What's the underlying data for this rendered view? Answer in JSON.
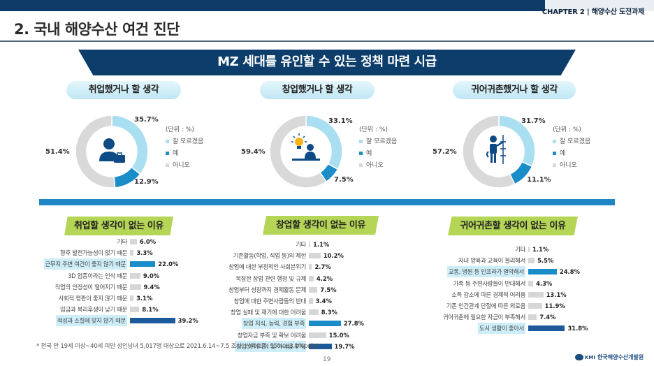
{
  "header": {
    "chapter": "CHAPTER 2  |  해양수산 도전과제",
    "page_title": "2. 국내 해양수산 여건 진단"
  },
  "banner": "MZ 세대를 유인할 수 있는 정책 마련 시급",
  "colors": {
    "unknown": "#a9dff1",
    "yes": "#1a8cc8",
    "no": "#d9d9d9",
    "bar_gray": "#d6d6d6",
    "bar_blue": "#1a8cc8",
    "bar_navy": "#1c5a9b"
  },
  "donuts": [
    {
      "title": "취업했거나 할 생각",
      "unit": "(단위 : %)",
      "icon": "job-seeker-icon",
      "values": {
        "unknown": 35.7,
        "yes": 12.9,
        "no": 51.4
      },
      "labels": {
        "unknown": "35.7%",
        "yes": "12.9%",
        "no": "51.4%"
      },
      "legend": [
        "잘 모르겠음",
        "예",
        "아니오"
      ]
    },
    {
      "title": "창업했거나 할 생각",
      "unit": "(단위 : %)",
      "icon": "startup-idea-icon",
      "values": {
        "unknown": 33.1,
        "yes": 7.5,
        "no": 59.4
      },
      "labels": {
        "unknown": "33.1%",
        "yes": "7.5%",
        "no": "59.4%"
      },
      "legend": [
        "잘 모르겠음",
        "예",
        "아니오"
      ]
    },
    {
      "title": "귀어귀촌했거나 할 생각",
      "unit": "(단위 : %)",
      "icon": "fisherman-icon",
      "values": {
        "unknown": 31.7,
        "yes": 11.1,
        "no": 57.2
      },
      "labels": {
        "unknown": "31.7%",
        "yes": "11.1%",
        "no": "57.2%"
      },
      "legend": [
        "잘 모르겠음",
        "예",
        "아니오"
      ]
    }
  ],
  "reasons": [
    {
      "title": "취업할 생각이 없는 이유",
      "items": [
        {
          "label": "기타",
          "value": 6.0,
          "text": "6.0%",
          "style": "gray"
        },
        {
          "label": "향후 발전가능성이 없기 때문",
          "value": 3.3,
          "text": "3.3%",
          "style": "gray"
        },
        {
          "label": "근무지 주변 여건이 좋지 않기 때문",
          "value": 22.0,
          "text": "22.0%",
          "style": "blue",
          "highlight": true
        },
        {
          "label": "3D 업종이라는 인식 때문",
          "value": 9.0,
          "text": "9.0%",
          "style": "gray"
        },
        {
          "label": "직업의 안정성이 떨어지기 때문",
          "value": 9.4,
          "text": "9.4%",
          "style": "gray"
        },
        {
          "label": "사회적 평판이 좋지 않기 때문",
          "value": 3.1,
          "text": "3.1%",
          "style": "gray"
        },
        {
          "label": "임금과 복리후생이 낮기 때문",
          "value": 8.1,
          "text": "8.1%",
          "style": "gray"
        },
        {
          "label": "적성과 소질에 맞지 않기 때문",
          "value": 39.2,
          "text": "39.2%",
          "style": "navy",
          "highlight": true
        }
      ]
    },
    {
      "title": "창업할 생각이 없는 이유",
      "items": [
        {
          "label": "기타",
          "value": 1.1,
          "text": "1.1%",
          "style": "gray"
        },
        {
          "label": "기존활동(학업, 직업 등)의 제한",
          "value": 10.2,
          "text": "10.2%",
          "style": "gray"
        },
        {
          "label": "창업에 대한 부정적인 사회분위기",
          "value": 2.7,
          "text": "2.7%",
          "style": "gray"
        },
        {
          "label": "복잡한 창업 관련 행정 및 규제",
          "value": 4.2,
          "text": "4.2%",
          "style": "gray"
        },
        {
          "label": "창업부터 성장까지 경제활동 문제",
          "value": 7.5,
          "text": "7.5%",
          "style": "gray"
        },
        {
          "label": "창업에 대한 주변사람들의 반대",
          "value": 3.4,
          "text": "3.4%",
          "style": "gray"
        },
        {
          "label": "창업 실패 및 재기에 대한 어려움",
          "value": 8.3,
          "text": "8.3%",
          "style": "gray"
        },
        {
          "label": "창업 지식, 능력, 경험 부족",
          "value": 27.8,
          "text": "27.8%",
          "style": "blue",
          "highlight": true
        },
        {
          "label": "창업자금 부족 및 확보 어려움",
          "value": 15.0,
          "text": "15.0%",
          "style": "gray"
        },
        {
          "label": "창업 아이디어 및 아이템 부재",
          "value": 19.7,
          "text": "19.7%",
          "style": "navy",
          "highlight": true
        }
      ]
    },
    {
      "title": "귀어귀촌할 생각이 없는 이유",
      "items": [
        {
          "label": "기타",
          "value": 1.1,
          "text": "1.1%",
          "style": "gray"
        },
        {
          "label": "자녀 양육과 교육이 불리해서",
          "value": 5.5,
          "text": "5.5%",
          "style": "gray"
        },
        {
          "label": "교통, 병원 등 인프라가 열악해서",
          "value": 24.8,
          "text": "24.8%",
          "style": "blue",
          "highlight": true
        },
        {
          "label": "가족 등 주변사람들이 반대해서",
          "value": 4.3,
          "text": "4.3%",
          "style": "gray"
        },
        {
          "label": "소득 감소에 따른 경제적 어려움",
          "value": 13.1,
          "text": "13.1%",
          "style": "gray"
        },
        {
          "label": "기존 인간관계 단절에 따른 외로움",
          "value": 11.9,
          "text": "11.9%",
          "style": "gray"
        },
        {
          "label": "귀어귀촌에 필요한 자금이 부족해서",
          "value": 7.4,
          "text": "7.4%",
          "style": "gray"
        },
        {
          "label": "도시 생활이 좋아서",
          "value": 31.8,
          "text": "31.8%",
          "style": "navy",
          "highlight": true
        }
      ]
    }
  ],
  "footnote": "* 전국 만 19세 이상~40세 미만 성인남녀 5,017명 대상으로 2021.6.14~7.5 조사, 신뢰수준: 95% ±3.1%point",
  "page_number": "19",
  "logo": {
    "mark": "KMI",
    "name": "한국해양수산개발원"
  }
}
